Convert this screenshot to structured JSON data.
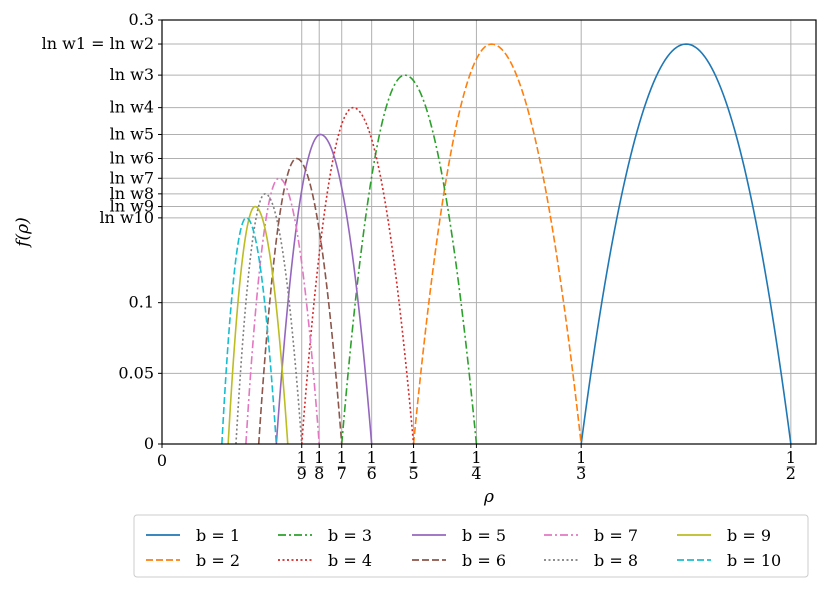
{
  "chart_data": {
    "type": "line",
    "xlabel": "ρ",
    "ylabel": "f(ρ)",
    "xlim": [
      0,
      0.52
    ],
    "ylim": [
      0,
      0.3
    ],
    "grid": true,
    "legend_position": "below plot, 5 columns",
    "x_ticks": [
      {
        "value": 0,
        "label": "0"
      },
      {
        "value": 0.1111,
        "num": "1",
        "den": "9"
      },
      {
        "value": 0.125,
        "num": "1",
        "den": "8"
      },
      {
        "value": 0.1429,
        "num": "1",
        "den": "7"
      },
      {
        "value": 0.1667,
        "num": "1",
        "den": "6"
      },
      {
        "value": 0.2,
        "num": "1",
        "den": "5"
      },
      {
        "value": 0.25,
        "num": "1",
        "den": "4"
      },
      {
        "value": 0.3333,
        "num": "1",
        "den": "3"
      },
      {
        "value": 0.5,
        "num": "1",
        "den": "2"
      }
    ],
    "y_ticks": [
      {
        "value": 0,
        "label": "0"
      },
      {
        "value": 0.05,
        "label": "0.05"
      },
      {
        "value": 0.1,
        "label": "0.1"
      },
      {
        "value": 0.16,
        "label": "ln w10"
      },
      {
        "value": 0.168,
        "label": "ln w9"
      },
      {
        "value": 0.177,
        "label": "ln w8"
      },
      {
        "value": 0.188,
        "label": "ln w7"
      },
      {
        "value": 0.202,
        "label": "ln w6"
      },
      {
        "value": 0.219,
        "label": "ln w5"
      },
      {
        "value": 0.238,
        "label": "ln w4"
      },
      {
        "value": 0.261,
        "label": "ln w3"
      },
      {
        "value": 0.283,
        "label": "ln w1 = ln w2"
      },
      {
        "value": 0.3,
        "label": "0.3"
      }
    ],
    "series": [
      {
        "name": "b = 1",
        "color": "#1f77b4",
        "dash": "solid",
        "x_start": 0.3333,
        "x_end": 0.5,
        "x_peak": 0.4167,
        "y_peak": 0.283
      },
      {
        "name": "b = 2",
        "color": "#ff7f0e",
        "dash": "dashed",
        "x_start": 0.2,
        "x_end": 0.3333,
        "x_peak": 0.262,
        "y_peak": 0.283
      },
      {
        "name": "b = 3",
        "color": "#2ca02c",
        "dash": "dashdot",
        "x_start": 0.1429,
        "x_end": 0.25,
        "x_peak": 0.193,
        "y_peak": 0.261
      },
      {
        "name": "b = 4",
        "color": "#d62728",
        "dash": "dotted",
        "x_start": 0.1111,
        "x_end": 0.2,
        "x_peak": 0.152,
        "y_peak": 0.238
      },
      {
        "name": "b = 5",
        "color": "#9467bd",
        "dash": "solid",
        "x_start": 0.0909,
        "x_end": 0.1667,
        "x_peak": 0.126,
        "y_peak": 0.219
      },
      {
        "name": "b = 6",
        "color": "#8c564b",
        "dash": "dashed",
        "x_start": 0.0769,
        "x_end": 0.1429,
        "x_peak": 0.107,
        "y_peak": 0.202
      },
      {
        "name": "b = 7",
        "color": "#e377c2",
        "dash": "dashdot",
        "x_start": 0.0667,
        "x_end": 0.125,
        "x_peak": 0.093,
        "y_peak": 0.188
      },
      {
        "name": "b = 8",
        "color": "#7f7f7f",
        "dash": "dotted",
        "x_start": 0.0588,
        "x_end": 0.1111,
        "x_peak": 0.082,
        "y_peak": 0.177
      },
      {
        "name": "b = 9",
        "color": "#bcbd22",
        "dash": "solid",
        "x_start": 0.0526,
        "x_end": 0.1,
        "x_peak": 0.074,
        "y_peak": 0.168
      },
      {
        "name": "b = 10",
        "color": "#17becf",
        "dash": "dashed",
        "x_start": 0.0476,
        "x_end": 0.0909,
        "x_peak": 0.067,
        "y_peak": 0.16
      }
    ]
  }
}
